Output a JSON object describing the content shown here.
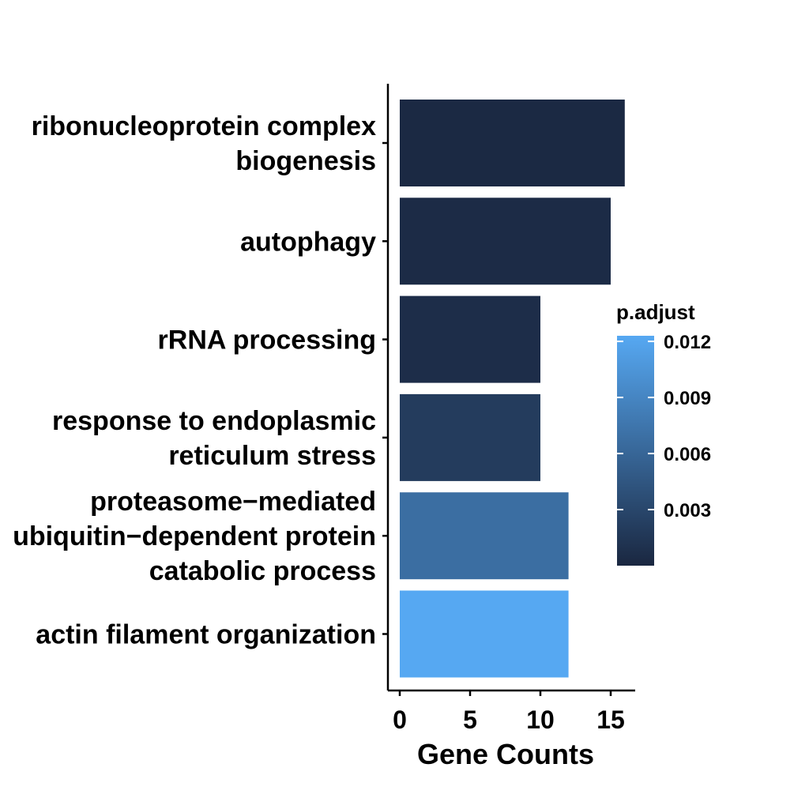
{
  "chart_data": {
    "type": "bar",
    "orientation": "horizontal",
    "categories": [
      "ribonucleoprotein complex biogenesis",
      "autophagy",
      "rRNA processing",
      "response to endoplasmic reticulum stress",
      "proteasome−mediated ubiquitin−dependent protein catabolic process",
      "actin filament organization"
    ],
    "category_lines": [
      [
        "ribonucleoprotein complex",
        "biogenesis"
      ],
      [
        "autophagy"
      ],
      [
        "rRNA processing"
      ],
      [
        "response to endoplasmic",
        "reticulum stress"
      ],
      [
        "proteasome−mediated",
        "ubiquitin−dependent protein",
        "catabolic process"
      ],
      [
        "actin filament organization"
      ]
    ],
    "values": [
      16,
      15,
      10,
      10,
      12,
      12
    ],
    "color_values": [
      0.0002,
      0.0004,
      0.0006,
      0.002,
      0.0068,
      0.0123
    ],
    "xlabel": "Gene Counts",
    "ylabel": "",
    "xlim": [
      0,
      16.5
    ],
    "xticks": [
      0,
      5,
      10,
      15
    ],
    "xtick_labels": [
      "0",
      "5",
      "10",
      "15"
    ],
    "grid": false,
    "legend": {
      "title": "p.adjust",
      "position": "right",
      "min": 0.0,
      "max": 0.0123,
      "ticks": [
        0.012,
        0.009,
        0.006,
        0.003
      ],
      "tick_labels": [
        "0.012",
        "0.009",
        "0.006",
        "0.003"
      ],
      "color_low": "#1a2740",
      "color_high": "#56a8f2"
    }
  }
}
